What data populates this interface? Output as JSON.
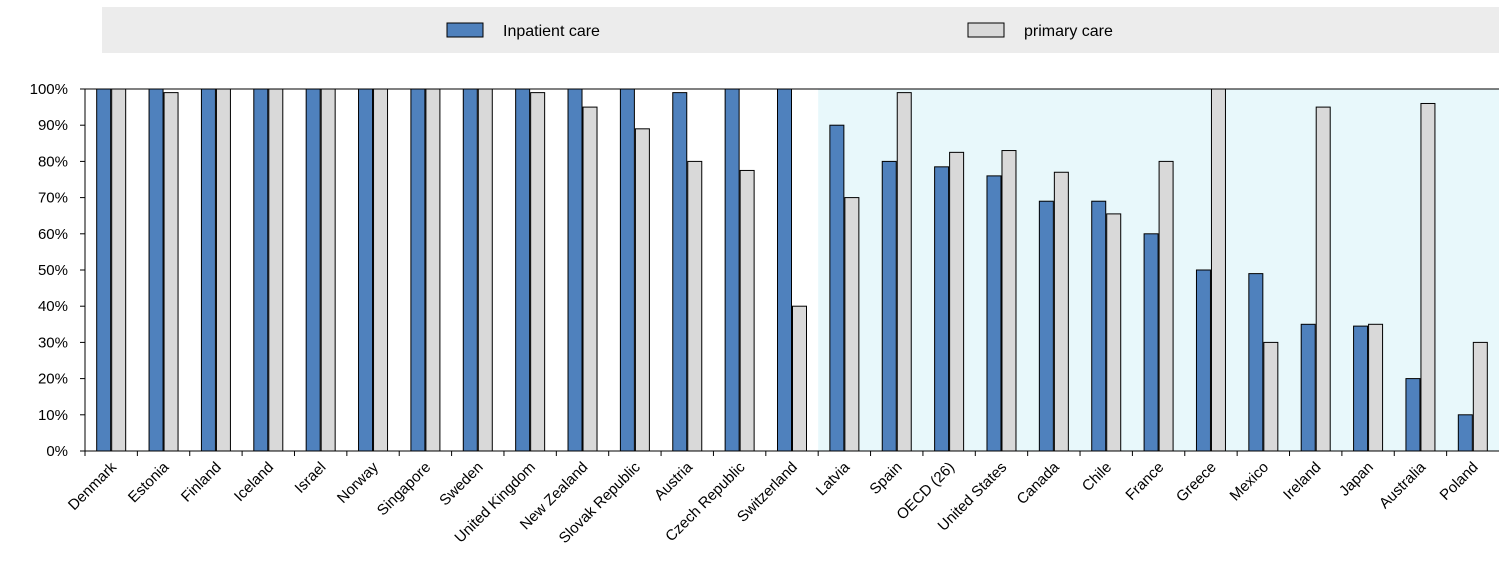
{
  "chart_data": {
    "type": "bar",
    "title": "",
    "xlabel": "",
    "ylabel": "",
    "ylim": [
      0,
      100
    ],
    "yticks": [
      0,
      10,
      20,
      30,
      40,
      50,
      60,
      70,
      80,
      90,
      100
    ],
    "ytick_labels": [
      "0%",
      "10%",
      "20%",
      "30%",
      "40%",
      "50%",
      "60%",
      "70%",
      "80%",
      "90%",
      "100%"
    ],
    "legend_position": "top",
    "grid": false,
    "categories": [
      "Denmark",
      "Estonia",
      "Finland",
      "Iceland",
      "Israel",
      "Norway",
      "Singapore",
      "Sweden",
      "United Kingdom",
      "New Zealand",
      "Slovak Republic",
      "Austria",
      "Czech Republic",
      "Switzerland",
      "Latvia",
      "Spain",
      "OECD (26)",
      "United States",
      "Canada",
      "Chile",
      "France",
      "Greece",
      "Mexico",
      "Ireland",
      "Japan",
      "Australia",
      "Poland"
    ],
    "series": [
      {
        "name": "Inpatient care",
        "color": "#4f81bd",
        "values": [
          100,
          100,
          100,
          100,
          100,
          100,
          100,
          100,
          100,
          100,
          100,
          99,
          100,
          100,
          90,
          80,
          78.5,
          76,
          69,
          69,
          60,
          50,
          49,
          35,
          34.5,
          20,
          10
        ]
      },
      {
        "name": "primary care",
        "color": "#d9d9d9",
        "values": [
          100,
          99,
          100,
          100,
          100,
          100,
          100,
          100,
          99,
          95,
          89,
          80,
          77.5,
          40,
          70,
          99,
          82.5,
          83,
          77,
          65.5,
          80,
          100,
          30,
          95,
          35,
          96,
          30
        ]
      }
    ]
  }
}
